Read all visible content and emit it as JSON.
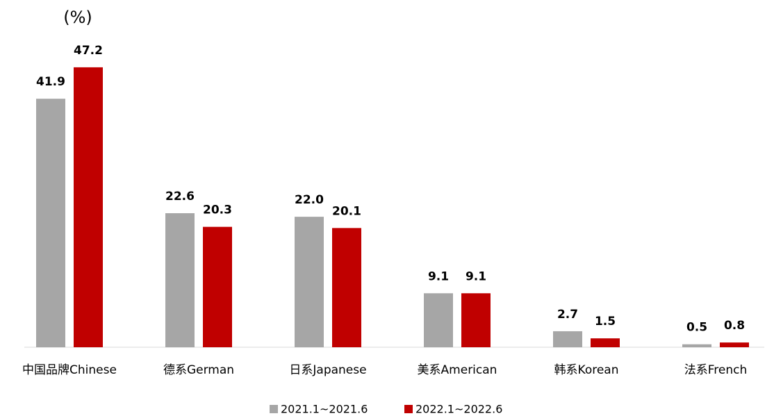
{
  "chart_data": {
    "type": "bar",
    "unit_label": "(%)",
    "categories": [
      "中国品牌Chinese",
      "德系German",
      "日系Japanese",
      "美系American",
      "韩系Korean",
      "法系French"
    ],
    "series": [
      {
        "name": "2021.1~2021.6",
        "color": "#a6a6a6",
        "values": [
          41.9,
          22.6,
          22.0,
          9.1,
          2.7,
          0.5
        ],
        "value_labels": [
          "41.9",
          "22.6",
          "22.0",
          "9.1",
          "2.7",
          "0.5"
        ]
      },
      {
        "name": "2022.1~2022.6",
        "color": "#c00000",
        "values": [
          47.2,
          20.3,
          20.1,
          9.1,
          1.5,
          0.8
        ],
        "value_labels": [
          "47.2",
          "20.3",
          "20.1",
          "9.1",
          "1.5",
          "0.8"
        ]
      }
    ],
    "ylim": [
      0,
      50
    ]
  }
}
